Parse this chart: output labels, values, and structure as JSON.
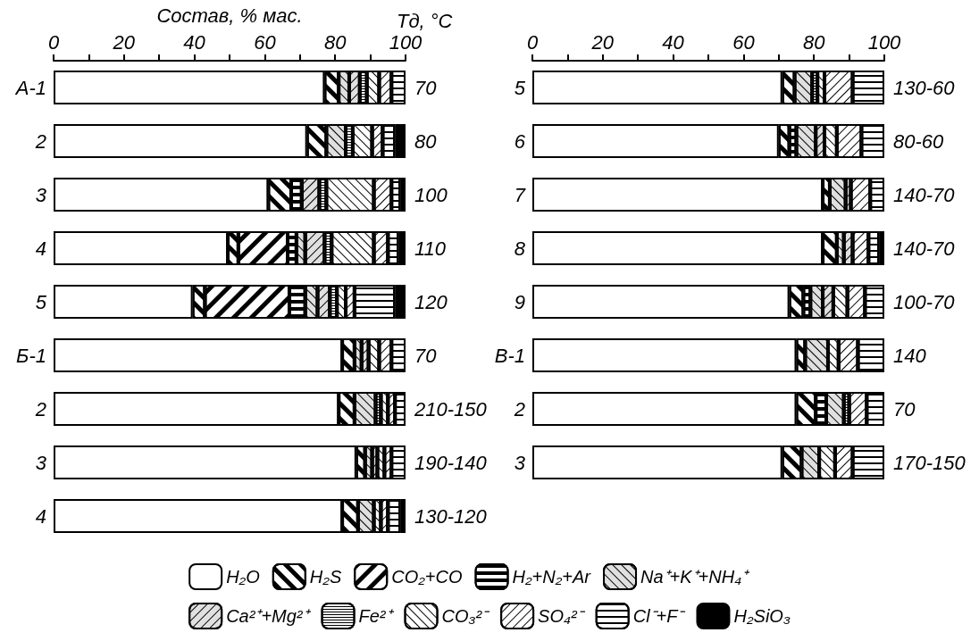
{
  "chart_data": [
    {
      "type": "bar",
      "orientation": "horizontal",
      "stacked": true,
      "xlabel": "Состав, % мас.",
      "y2label": "Тд, °C",
      "categories": [
        "А-1",
        "2",
        "3",
        "4",
        "5",
        "Б-1",
        "2",
        "3",
        "4"
      ],
      "y2_categories": [
        "70",
        "80",
        "100",
        "110",
        "120",
        "70",
        "210-150",
        "190-140",
        "130-120"
      ],
      "xlim": [
        0,
        100
      ],
      "xticks": [
        0,
        {
          "value": 10,
          "label": null
        },
        20,
        {
          "value": 30,
          "label": null
        },
        40,
        {
          "value": 50,
          "label": null
        },
        60,
        {
          "value": 70,
          "label": null
        },
        80,
        {
          "value": 90,
          "label": null
        },
        100
      ],
      "grid": false,
      "legend": "bottom",
      "series": [
        {
          "name": "H₂O",
          "color": "#ffffff",
          "values": [
            77,
            72,
            61,
            49.5,
            39.5,
            82,
            81,
            86,
            82
          ]
        },
        {
          "name": "H₂S",
          "color": "#ffffff",
          "values": [
            4,
            5.5,
            6.5,
            3,
            3.5,
            3.5,
            4.5,
            2.5,
            4.5
          ]
        },
        {
          "name": "CO₂+CO",
          "color": "#ffffff",
          "values": [
            null,
            null,
            null,
            14,
            24,
            null,
            null,
            null,
            null
          ]
        },
        {
          "name": "H₂+N₂+Ar",
          "color": "#ffffff",
          "values": [
            null,
            null,
            3,
            2.5,
            4.5,
            null,
            null,
            null,
            null
          ]
        },
        {
          "name": "Na⁺+K⁺+NH₄⁺",
          "color": "#e0e0e0",
          "values": [
            3,
            5.5,
            null,
            2.5,
            3.5,
            2,
            6,
            2,
            4.5
          ]
        },
        {
          "name": "Ca²⁺+Mg²⁺",
          "color": "#e0e0e0",
          "values": [
            3,
            null,
            5,
            5.5,
            3.5,
            2,
            null,
            1.5,
            null
          ]
        },
        {
          "name": "Fe²⁺",
          "color": "#ffffff",
          "values": [
            2,
            2,
            2,
            2,
            2,
            null,
            1.5,
            null,
            null
          ]
        },
        {
          "name": "CO₃²⁻",
          "color": "#ffffff",
          "values": [
            3.5,
            5.5,
            13.5,
            12,
            2.5,
            3,
            2,
            2,
            2
          ]
        },
        {
          "name": "SO₄²⁻",
          "color": "#ffffff",
          "values": [
            3.5,
            3,
            5,
            4,
            2.5,
            3.5,
            2,
            2,
            2
          ]
        },
        {
          "name": "Cl⁻+F⁻",
          "color": "#ffffff",
          "values": [
            4,
            3.5,
            2.5,
            3,
            11.5,
            4,
            3,
            4,
            3.5
          ]
        },
        {
          "name": "H₂SiO₃",
          "color": "#000000",
          "values": [
            null,
            3,
            1.5,
            2,
            3,
            null,
            null,
            null,
            1.5
          ]
        }
      ]
    },
    {
      "type": "bar",
      "orientation": "horizontal",
      "stacked": true,
      "categories": [
        "5",
        "6",
        "7",
        "8",
        "9",
        "В-1",
        "2",
        "3"
      ],
      "y2_categories": [
        "130-60",
        "80-60",
        "140-70",
        "140-70",
        "100-70",
        "140",
        "70",
        "170-150"
      ],
      "xlim": [
        0,
        100
      ],
      "xticks": [
        0,
        {
          "value": 10,
          "label": null
        },
        20,
        {
          "value": 30,
          "label": null
        },
        40,
        {
          "value": 50,
          "label": null
        },
        60,
        {
          "value": 70,
          "label": null
        },
        80,
        {
          "value": 90,
          "label": null
        },
        100
      ],
      "grid": false,
      "series": [
        {
          "color": "#ffffff",
          "values": [
            71,
            70,
            82.5,
            82.5,
            73,
            75,
            75,
            71
          ]
        },
        {
          "color": "#ffffff",
          "values": [
            3.5,
            3,
            2,
            4,
            4,
            2.5,
            5.5,
            5.5
          ]
        },
        {
          "color": "#ffffff",
          "values": [
            null,
            null,
            null,
            null,
            null,
            null,
            null,
            null
          ]
        },
        {
          "color": "#ffffff",
          "values": [
            null,
            2,
            null,
            null,
            2,
            null,
            3,
            null
          ]
        },
        {
          "color": "#e0e0e0",
          "values": [
            5,
            5.5,
            4.5,
            2,
            3.5,
            6.5,
            5,
            5
          ]
        },
        {
          "color": "#e0e0e0",
          "values": [
            null,
            2.5,
            1.5,
            2.5,
            3,
            null,
            null,
            null
          ]
        },
        {
          "color": "#ffffff",
          "values": [
            1.5,
            null,
            null,
            null,
            null,
            null,
            1.5,
            null
          ]
        },
        {
          "color": "#ffffff",
          "values": [
            2,
            3.5,
            null,
            null,
            4,
            3,
            null,
            4.5
          ]
        },
        {
          "color": "#ffffff",
          "values": [
            8,
            7,
            5.5,
            4.5,
            5,
            5.5,
            5,
            5
          ]
        },
        {
          "color": "#ffffff",
          "values": [
            9,
            6.5,
            4,
            3,
            5.5,
            7.5,
            5,
            9
          ]
        },
        {
          "color": "#000000",
          "values": [
            null,
            null,
            null,
            1.5,
            null,
            null,
            null,
            null
          ]
        }
      ]
    }
  ]
}
